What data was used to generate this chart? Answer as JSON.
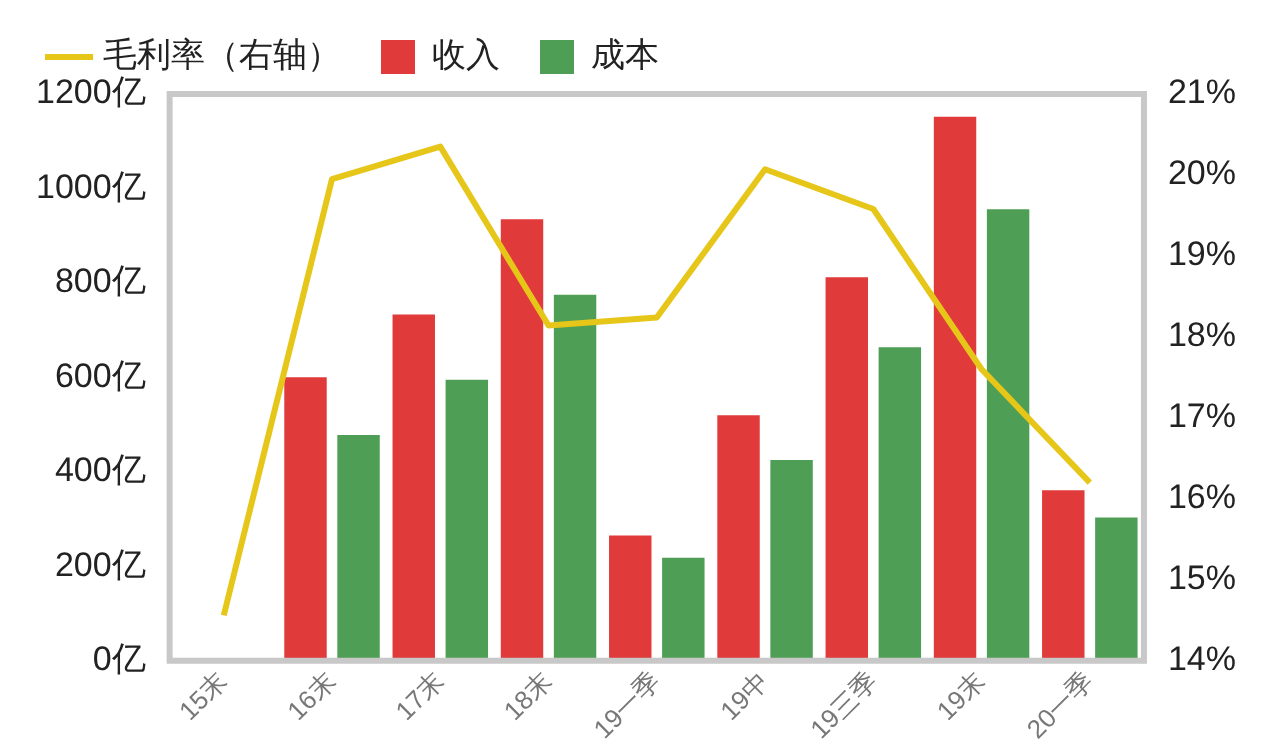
{
  "chart_data": {
    "type": "bar",
    "categories": [
      "15末",
      "16末",
      "17末",
      "18末",
      "19一季",
      "19中",
      "19三季",
      "19末",
      "20一季"
    ],
    "series": [
      {
        "name": "收入",
        "color": "#e03a3a",
        "values": [
          null,
          600,
          733,
          935,
          265,
          520,
          812,
          1152,
          361
        ]
      },
      {
        "name": "成本",
        "color": "#4f9e55",
        "values": [
          null,
          478,
          595,
          775,
          218,
          425,
          664,
          956,
          303
        ]
      },
      {
        "name": "毛利率（右轴）",
        "type": "line",
        "axis": "y2",
        "color": "#e6c619",
        "values": [
          14.56,
          19.95,
          20.35,
          18.14,
          18.24,
          20.07,
          19.58,
          17.6,
          16.2
        ]
      }
    ],
    "ylim": [
      0,
      1200
    ],
    "yticks": [
      {
        "value": 0,
        "label": "0亿"
      },
      {
        "value": 200,
        "label": "200亿"
      },
      {
        "value": 400,
        "label": "400亿"
      },
      {
        "value": 600,
        "label": "600亿"
      },
      {
        "value": 800,
        "label": "800亿"
      },
      {
        "value": 1000,
        "label": "1000亿"
      },
      {
        "value": 1200,
        "label": "1200亿"
      }
    ],
    "y2lim": [
      14,
      21
    ],
    "y2ticks": [
      {
        "value": 14,
        "label": "14%"
      },
      {
        "value": 15,
        "label": "15%"
      },
      {
        "value": 16,
        "label": "16%"
      },
      {
        "value": 17,
        "label": "17%"
      },
      {
        "value": 18,
        "label": "18%"
      },
      {
        "value": 19,
        "label": "19%"
      },
      {
        "value": 20,
        "label": "20%"
      },
      {
        "value": 21,
        "label": "21%"
      }
    ],
    "grid": false,
    "legend": "top left",
    "marker": "none"
  }
}
